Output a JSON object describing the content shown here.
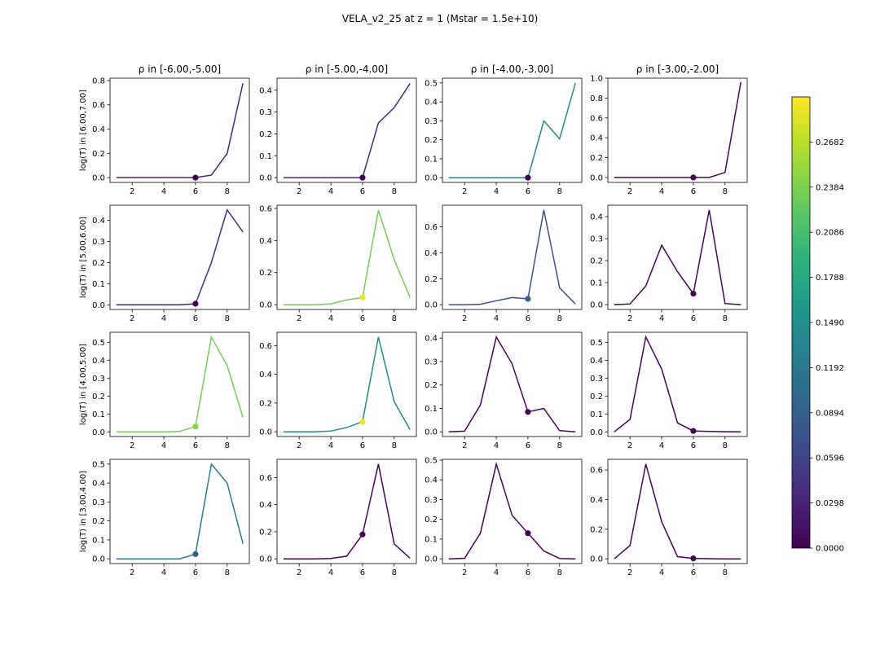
{
  "title": "VELA_v2_25 at z = 1 (Mstar = 1.5e+10)",
  "col_titles": [
    "ρ in [-6.00,-5.00]",
    "ρ in [-5.00,-4.00]",
    "ρ in [-4.00,-3.00]",
    "ρ in [-3.00,-2.00]"
  ],
  "row_labels": [
    "log(T) in [6.00,7.00]",
    "log(T) in [5.00,6.00]",
    "log(T) in [4.00,5.00]",
    "log(T) in [3.00,4.00]"
  ],
  "colorbar": {
    "min": 0.0,
    "max": 0.298,
    "ticks": [
      "0.0000",
      "0.0298",
      "0.0596",
      "0.0894",
      "0.1192",
      "0.1490",
      "0.1788",
      "0.2086",
      "0.2384",
      "0.2682"
    ],
    "colormap": "viridis"
  },
  "colors": {
    "axis": "#000000",
    "background": "#ffffff"
  },
  "chart_data": [
    {
      "type": "line",
      "row": 0,
      "col": 0,
      "x": [
        1,
        2,
        3,
        4,
        5,
        6,
        7,
        8,
        9
      ],
      "values": [
        0,
        0,
        0,
        0,
        0,
        0,
        0.02,
        0.2,
        0.78
      ],
      "marker": {
        "x": 6,
        "y": 0.0,
        "value": 0.0
      },
      "line_value": 0.03,
      "ylim": [
        -0.04,
        0.82
      ],
      "yticks": [
        0.0,
        0.2,
        0.4,
        0.6,
        0.8
      ],
      "xticks": [
        2,
        4,
        6,
        8
      ],
      "xlim": [
        0.6,
        9.4
      ]
    },
    {
      "type": "line",
      "row": 0,
      "col": 1,
      "x": [
        1,
        2,
        3,
        4,
        5,
        6,
        7,
        8,
        9
      ],
      "values": [
        0,
        0,
        0,
        0,
        0,
        0,
        0.25,
        0.32,
        0.43
      ],
      "marker": {
        "x": 6,
        "y": 0.0,
        "value": 0.0
      },
      "line_value": 0.035,
      "ylim": [
        -0.022,
        0.455
      ],
      "yticks": [
        0.0,
        0.1,
        0.2,
        0.3,
        0.4
      ],
      "xticks": [
        2,
        4,
        6,
        8
      ],
      "xlim": [
        0.6,
        9.4
      ]
    },
    {
      "type": "line",
      "row": 0,
      "col": 2,
      "x": [
        1,
        2,
        3,
        4,
        5,
        6,
        7,
        8,
        9
      ],
      "values": [
        0,
        0,
        0,
        0,
        0,
        0,
        0.3,
        0.205,
        0.5
      ],
      "marker": {
        "x": 6,
        "y": 0.0,
        "value": 0.0
      },
      "line_value": 0.14,
      "ylim": [
        -0.025,
        0.525
      ],
      "yticks": [
        0.0,
        0.1,
        0.2,
        0.3,
        0.4,
        0.5
      ],
      "xticks": [
        2,
        4,
        6,
        8
      ],
      "xlim": [
        0.6,
        9.4
      ]
    },
    {
      "type": "line",
      "row": 0,
      "col": 3,
      "x": [
        1,
        2,
        3,
        4,
        5,
        6,
        7,
        8,
        9
      ],
      "values": [
        0,
        0,
        0,
        0,
        0,
        0,
        0,
        0.05,
        0.96
      ],
      "marker": {
        "x": 6,
        "y": 0.0,
        "value": 0.0
      },
      "line_value": 0.005,
      "ylim": [
        -0.05,
        1.0
      ],
      "yticks": [
        0.0,
        0.2,
        0.4,
        0.6,
        0.8,
        1.0
      ],
      "xticks": [
        2,
        4,
        6,
        8
      ],
      "xlim": [
        0.6,
        9.4
      ]
    },
    {
      "type": "line",
      "row": 1,
      "col": 0,
      "x": [
        1,
        2,
        3,
        4,
        5,
        6,
        7,
        8,
        9
      ],
      "values": [
        0,
        0,
        0,
        0,
        0,
        0.005,
        0.2,
        0.45,
        0.345
      ],
      "marker": {
        "x": 6,
        "y": 0.005,
        "value": 0.0
      },
      "line_value": 0.035,
      "ylim": [
        -0.022,
        0.472
      ],
      "yticks": [
        0.0,
        0.1,
        0.2,
        0.3,
        0.4
      ],
      "xticks": [
        2,
        4,
        6,
        8
      ],
      "xlim": [
        0.6,
        9.4
      ]
    },
    {
      "type": "line",
      "row": 1,
      "col": 1,
      "x": [
        1,
        2,
        3,
        4,
        5,
        6,
        7,
        8,
        9
      ],
      "values": [
        0,
        0,
        0,
        0.005,
        0.03,
        0.045,
        0.59,
        0.28,
        0.045
      ],
      "marker": {
        "x": 6,
        "y": 0.045,
        "value": 0.29
      },
      "line_value": 0.235,
      "ylim": [
        -0.03,
        0.62
      ],
      "yticks": [
        0.0,
        0.2,
        0.4,
        0.6
      ],
      "xticks": [
        2,
        4,
        6,
        8
      ],
      "xlim": [
        0.6,
        9.4
      ]
    },
    {
      "type": "line",
      "row": 1,
      "col": 2,
      "x": [
        1,
        2,
        3,
        4,
        5,
        6,
        7,
        8,
        9
      ],
      "values": [
        0,
        0,
        0.003,
        0.03,
        0.055,
        0.045,
        0.73,
        0.13,
        0.005
      ],
      "marker": {
        "x": 6,
        "y": 0.045,
        "value": 0.09
      },
      "line_value": 0.07,
      "ylim": [
        -0.037,
        0.767
      ],
      "yticks": [
        0.0,
        0.2,
        0.4,
        0.6
      ],
      "xticks": [
        2,
        4,
        6,
        8
      ],
      "xlim": [
        0.6,
        9.4
      ]
    },
    {
      "type": "line",
      "row": 1,
      "col": 3,
      "x": [
        1,
        2,
        3,
        4,
        5,
        6,
        7,
        8,
        9
      ],
      "values": [
        0,
        0.003,
        0.085,
        0.27,
        0.15,
        0.05,
        0.43,
        0.005,
        0
      ],
      "marker": {
        "x": 6,
        "y": 0.05,
        "value": 0.0
      },
      "line_value": 0.003,
      "ylim": [
        -0.022,
        0.452
      ],
      "yticks": [
        0.0,
        0.1,
        0.2,
        0.3,
        0.4
      ],
      "xticks": [
        2,
        4,
        6,
        8
      ],
      "xlim": [
        0.6,
        9.4
      ]
    },
    {
      "type": "line",
      "row": 2,
      "col": 0,
      "x": [
        1,
        2,
        3,
        4,
        5,
        6,
        7,
        8,
        9
      ],
      "values": [
        0,
        0,
        0,
        0,
        0.002,
        0.03,
        0.53,
        0.37,
        0.08
      ],
      "marker": {
        "x": 6,
        "y": 0.03,
        "value": 0.245
      },
      "line_value": 0.235,
      "ylim": [
        -0.026,
        0.556
      ],
      "yticks": [
        0.0,
        0.1,
        0.2,
        0.3,
        0.4,
        0.5
      ],
      "xticks": [
        2,
        4,
        6,
        8
      ],
      "xlim": [
        0.6,
        9.4
      ]
    },
    {
      "type": "line",
      "row": 2,
      "col": 1,
      "x": [
        1,
        2,
        3,
        4,
        5,
        6,
        7,
        8,
        9
      ],
      "values": [
        0,
        0,
        0,
        0.005,
        0.03,
        0.07,
        0.66,
        0.21,
        0.015
      ],
      "marker": {
        "x": 6,
        "y": 0.07,
        "value": 0.29
      },
      "line_value": 0.145,
      "ylim": [
        -0.033,
        0.693
      ],
      "yticks": [
        0.0,
        0.2,
        0.4,
        0.6
      ],
      "xticks": [
        2,
        4,
        6,
        8
      ],
      "xlim": [
        0.6,
        9.4
      ]
    },
    {
      "type": "line",
      "row": 2,
      "col": 2,
      "x": [
        1,
        2,
        3,
        4,
        5,
        6,
        7,
        8,
        9
      ],
      "values": [
        0,
        0.003,
        0.115,
        0.405,
        0.29,
        0.085,
        0.1,
        0.005,
        0
      ],
      "marker": {
        "x": 6,
        "y": 0.085,
        "value": 0.0
      },
      "line_value": 0.003,
      "ylim": [
        -0.02,
        0.425
      ],
      "yticks": [
        0.0,
        0.1,
        0.2,
        0.3,
        0.4
      ],
      "xticks": [
        2,
        4,
        6,
        8
      ],
      "xlim": [
        0.6,
        9.4
      ]
    },
    {
      "type": "line",
      "row": 2,
      "col": 3,
      "x": [
        1,
        2,
        3,
        4,
        5,
        6,
        7,
        8,
        9
      ],
      "values": [
        0,
        0.07,
        0.53,
        0.35,
        0.05,
        0.005,
        0.002,
        0.001,
        0
      ],
      "marker": {
        "x": 6,
        "y": 0.005,
        "value": 0.0
      },
      "line_value": 0.003,
      "ylim": [
        -0.026,
        0.556
      ],
      "yticks": [
        0.0,
        0.1,
        0.2,
        0.3,
        0.4,
        0.5
      ],
      "xticks": [
        2,
        4,
        6,
        8
      ],
      "xlim": [
        0.6,
        9.4
      ]
    },
    {
      "type": "line",
      "row": 3,
      "col": 0,
      "x": [
        1,
        2,
        3,
        4,
        5,
        6,
        7,
        8,
        9
      ],
      "values": [
        0,
        0,
        0,
        0,
        0,
        0.025,
        0.5,
        0.4,
        0.08
      ],
      "marker": {
        "x": 6,
        "y": 0.025,
        "value": 0.09
      },
      "line_value": 0.125,
      "ylim": [
        -0.025,
        0.525
      ],
      "yticks": [
        0.0,
        0.1,
        0.2,
        0.3,
        0.4,
        0.5
      ],
      "xticks": [
        2,
        4,
        6,
        8
      ],
      "xlim": [
        0.6,
        9.4
      ]
    },
    {
      "type": "line",
      "row": 3,
      "col": 1,
      "x": [
        1,
        2,
        3,
        4,
        5,
        6,
        7,
        8,
        9
      ],
      "values": [
        0,
        0,
        0,
        0.002,
        0.02,
        0.18,
        0.7,
        0.11,
        0.005
      ],
      "marker": {
        "x": 6,
        "y": 0.18,
        "value": 0.0
      },
      "line_value": 0.003,
      "ylim": [
        -0.035,
        0.735
      ],
      "yticks": [
        0.0,
        0.2,
        0.4,
        0.6
      ],
      "xticks": [
        2,
        4,
        6,
        8
      ],
      "xlim": [
        0.6,
        9.4
      ]
    },
    {
      "type": "line",
      "row": 3,
      "col": 2,
      "x": [
        1,
        2,
        3,
        4,
        5,
        6,
        7,
        8,
        9
      ],
      "values": [
        0,
        0.003,
        0.13,
        0.48,
        0.22,
        0.13,
        0.04,
        0.002,
        0
      ],
      "marker": {
        "x": 6,
        "y": 0.13,
        "value": 0.0
      },
      "line_value": 0.003,
      "ylim": [
        -0.024,
        0.504
      ],
      "yticks": [
        0.0,
        0.1,
        0.2,
        0.3,
        0.4,
        0.5
      ],
      "xticks": [
        2,
        4,
        6,
        8
      ],
      "xlim": [
        0.6,
        9.4
      ]
    },
    {
      "type": "line",
      "row": 3,
      "col": 3,
      "x": [
        1,
        2,
        3,
        4,
        5,
        6,
        7,
        8,
        9
      ],
      "values": [
        0,
        0.09,
        0.64,
        0.25,
        0.015,
        0.003,
        0.001,
        0,
        0
      ],
      "marker": {
        "x": 6,
        "y": 0.003,
        "value": 0.0
      },
      "line_value": 0.003,
      "ylim": [
        -0.032,
        0.672
      ],
      "yticks": [
        0.0,
        0.2,
        0.4,
        0.6
      ],
      "xticks": [
        2,
        4,
        6,
        8
      ],
      "xlim": [
        0.6,
        9.4
      ]
    }
  ]
}
